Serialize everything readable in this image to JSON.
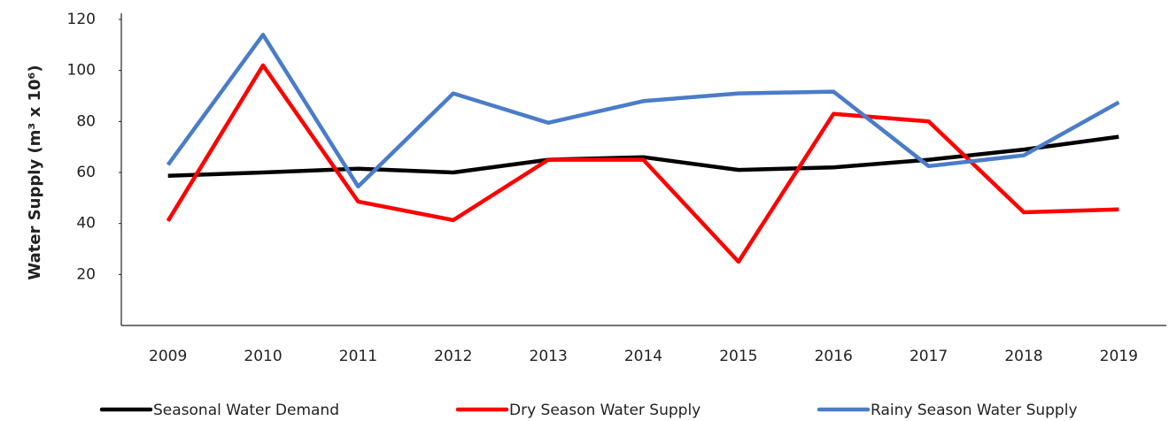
{
  "chart_data": {
    "type": "line",
    "y_label": "Water Supply (m³ x 10⁶)",
    "categories": [
      "2009",
      "2010",
      "2011",
      "2012",
      "2013",
      "2014",
      "2015",
      "2016",
      "2017",
      "2018",
      "2019"
    ],
    "series": [
      {
        "name": "Seasonal Water Demand",
        "color": "#000000",
        "values": [
          58.7,
          60,
          61.5,
          60,
          65,
          66,
          61,
          62,
          65,
          69,
          74
        ]
      },
      {
        "name": "Dry Season Water Supply",
        "color": "#ff0000",
        "values": [
          41,
          102,
          48.6,
          41.3,
          65,
          65,
          25,
          83,
          80,
          44.4,
          45.5
        ]
      },
      {
        "name": "Rainy Season Water Supply",
        "color": "#4a7cc9",
        "values": [
          63,
          114,
          54.5,
          91,
          79.5,
          88,
          91,
          91.7,
          62.5,
          66.7,
          87.5
        ]
      }
    ],
    "ylim": [
      0,
      120
    ],
    "yticks": [
      20,
      40,
      60,
      80,
      100,
      120
    ],
    "grid": false,
    "legend": "bottom"
  }
}
